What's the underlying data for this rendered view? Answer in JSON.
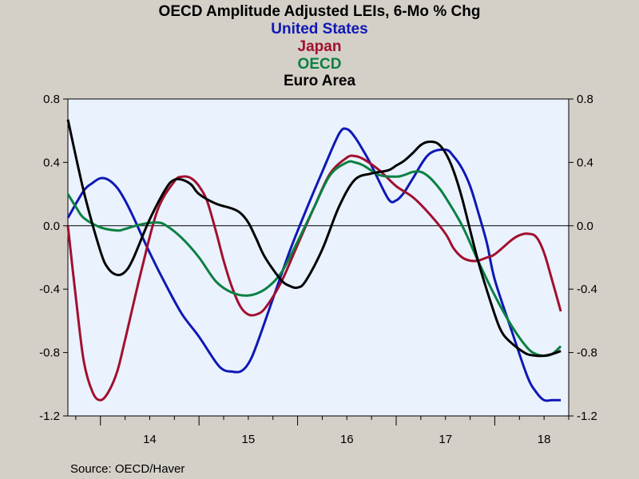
{
  "chart_data": {
    "type": "line",
    "title": "OECD Amplitude Adjusted LEIs, 6-Mo % Chg",
    "source": "Source:  OECD/Haver",
    "ylim": [
      -1.2,
      0.8
    ],
    "y_ticks": [
      "0.8",
      "0.4",
      "0.0",
      "-0.4",
      "-0.8",
      "-1.2"
    ],
    "x_range": [
      2013.67,
      2018.75
    ],
    "x_ticks": [
      {
        "label": "14",
        "year": 2014
      },
      {
        "label": "15",
        "year": 2015
      },
      {
        "label": "16",
        "year": 2016
      },
      {
        "label": "17",
        "year": 2017
      },
      {
        "label": "18",
        "year": 2018
      }
    ],
    "zero_line": true,
    "background": "#eaf2fe",
    "series": [
      {
        "name": "United States",
        "color": "#0f18b4",
        "x": [
          2013.67,
          2013.83,
          2013.92,
          2014.0,
          2014.08,
          2014.17,
          2014.25,
          2014.33,
          2014.5,
          2014.67,
          2014.83,
          2015.0,
          2015.17,
          2015.25,
          2015.33,
          2015.42,
          2015.5,
          2015.58,
          2015.75,
          2015.92,
          2016.08,
          2016.25,
          2016.42,
          2016.5,
          2016.58,
          2016.67,
          2016.75,
          2016.92,
          2017.0,
          2017.08,
          2017.17,
          2017.33,
          2017.5,
          2017.58,
          2017.67,
          2017.75,
          2017.83,
          2017.92,
          2018.0,
          2018.17,
          2018.33,
          2018.42,
          2018.5,
          2018.58,
          2018.67
        ],
        "y": [
          0.05,
          0.22,
          0.27,
          0.3,
          0.29,
          0.24,
          0.16,
          0.06,
          -0.17,
          -0.38,
          -0.56,
          -0.7,
          -0.86,
          -0.91,
          -0.92,
          -0.92,
          -0.87,
          -0.76,
          -0.46,
          -0.16,
          0.09,
          0.34,
          0.58,
          0.61,
          0.56,
          0.47,
          0.38,
          0.17,
          0.16,
          0.21,
          0.3,
          0.45,
          0.48,
          0.44,
          0.36,
          0.25,
          0.09,
          -0.11,
          -0.34,
          -0.66,
          -0.95,
          -1.05,
          -1.1,
          -1.1,
          -1.1
        ]
      },
      {
        "name": "Japan",
        "color": "#a1102e",
        "x": [
          2013.67,
          2013.75,
          2013.83,
          2013.92,
          2014.0,
          2014.08,
          2014.17,
          2014.25,
          2014.42,
          2014.58,
          2014.75,
          2014.83,
          2014.92,
          2015.0,
          2015.08,
          2015.17,
          2015.25,
          2015.33,
          2015.42,
          2015.5,
          2015.58,
          2015.67,
          2015.83,
          2016.0,
          2016.17,
          2016.33,
          2016.5,
          2016.58,
          2016.67,
          2016.83,
          2017.0,
          2017.17,
          2017.33,
          2017.5,
          2017.58,
          2017.67,
          2017.75,
          2017.83,
          2017.92,
          2018.0,
          2018.17,
          2018.25,
          2018.33,
          2018.42,
          2018.5,
          2018.58,
          2018.67
        ],
        "y": [
          0.0,
          -0.45,
          -0.85,
          -1.05,
          -1.1,
          -1.05,
          -0.92,
          -0.72,
          -0.27,
          0.1,
          0.28,
          0.31,
          0.3,
          0.25,
          0.16,
          -0.03,
          -0.22,
          -0.38,
          -0.51,
          -0.56,
          -0.56,
          -0.52,
          -0.36,
          -0.12,
          0.12,
          0.33,
          0.43,
          0.44,
          0.42,
          0.35,
          0.25,
          0.18,
          0.08,
          -0.05,
          -0.14,
          -0.2,
          -0.22,
          -0.22,
          -0.2,
          -0.18,
          -0.09,
          -0.06,
          -0.05,
          -0.07,
          -0.17,
          -0.34,
          -0.54
        ]
      },
      {
        "name": "OECD",
        "color": "#0a8042",
        "x": [
          2013.67,
          2013.75,
          2013.83,
          2014.0,
          2014.17,
          2014.25,
          2014.42,
          2014.58,
          2014.67,
          2014.83,
          2015.0,
          2015.17,
          2015.33,
          2015.5,
          2015.67,
          2015.83,
          2016.0,
          2016.17,
          2016.33,
          2016.5,
          2016.58,
          2016.67,
          2016.83,
          2017.0,
          2017.08,
          2017.17,
          2017.25,
          2017.33,
          2017.42,
          2017.5,
          2017.67,
          2017.83,
          2018.0,
          2018.17,
          2018.33,
          2018.42,
          2018.5,
          2018.58,
          2018.67
        ],
        "y": [
          0.2,
          0.12,
          0.05,
          -0.01,
          -0.03,
          -0.02,
          0.01,
          0.02,
          0.0,
          -0.08,
          -0.2,
          -0.35,
          -0.42,
          -0.44,
          -0.4,
          -0.3,
          -0.1,
          0.12,
          0.32,
          0.4,
          0.4,
          0.38,
          0.32,
          0.31,
          0.32,
          0.34,
          0.34,
          0.31,
          0.25,
          0.18,
          0.0,
          -0.22,
          -0.44,
          -0.63,
          -0.77,
          -0.81,
          -0.82,
          -0.81,
          -0.76
        ]
      },
      {
        "name": "Euro Area",
        "color": "#000000",
        "x": [
          2013.67,
          2013.83,
          2014.0,
          2014.08,
          2014.17,
          2014.25,
          2014.33,
          2014.5,
          2014.67,
          2014.75,
          2014.83,
          2014.92,
          2015.0,
          2015.17,
          2015.33,
          2015.42,
          2015.5,
          2015.58,
          2015.67,
          2015.83,
          2015.92,
          2016.0,
          2016.08,
          2016.25,
          2016.42,
          2016.58,
          2016.75,
          2016.92,
          2017.0,
          2017.08,
          2017.17,
          2017.25,
          2017.33,
          2017.42,
          2017.5,
          2017.58,
          2017.67,
          2017.83,
          2018.0,
          2018.08,
          2018.17,
          2018.25,
          2018.33,
          2018.42,
          2018.5,
          2018.58,
          2018.67
        ],
        "y": [
          0.67,
          0.22,
          -0.16,
          -0.27,
          -0.31,
          -0.29,
          -0.21,
          0.04,
          0.24,
          0.29,
          0.29,
          0.26,
          0.2,
          0.14,
          0.11,
          0.08,
          0.02,
          -0.08,
          -0.2,
          -0.34,
          -0.38,
          -0.39,
          -0.35,
          -0.15,
          0.12,
          0.29,
          0.33,
          0.35,
          0.38,
          0.41,
          0.46,
          0.51,
          0.53,
          0.52,
          0.46,
          0.35,
          0.17,
          -0.22,
          -0.56,
          -0.68,
          -0.74,
          -0.78,
          -0.81,
          -0.82,
          -0.82,
          -0.81,
          -0.79
        ]
      }
    ]
  }
}
